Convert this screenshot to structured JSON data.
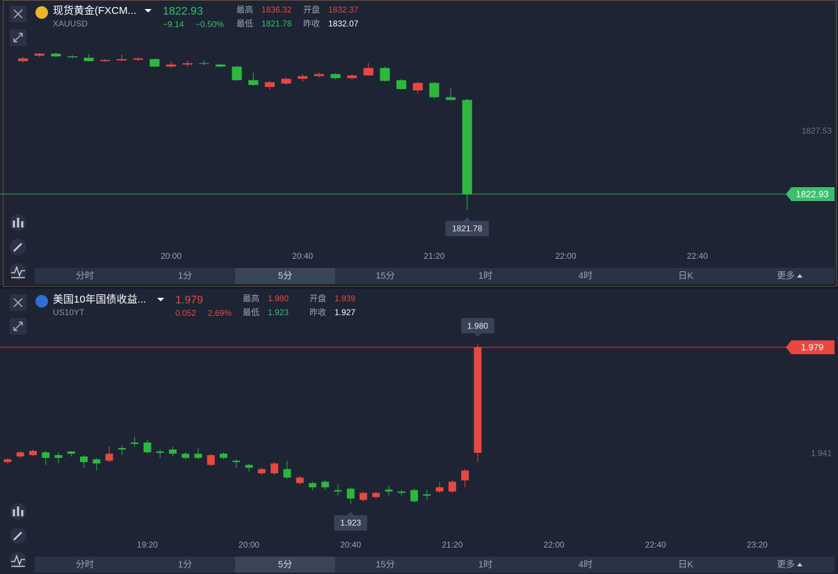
{
  "panels": [
    {
      "header": {
        "name": "现货黄金(FXCM...",
        "symbol": "XAUUSD",
        "price": "1822.93",
        "change": "−9.14",
        "change_pct": "−0.50%",
        "high_label": "最高",
        "high": "1836.32",
        "open_label": "开盘",
        "open": "1832.37",
        "low_label": "最低",
        "low": "1821.78",
        "prev_label": "昨收",
        "prev_close": "1832.07",
        "trend_color": "#3cbf6c",
        "icon_color": "#f0b429"
      }
    },
    {
      "header": {
        "name": "美国10年国债收益...",
        "symbol": "US10YT",
        "price": "1.979",
        "change": "0.052",
        "change_pct": "2.69%",
        "high_label": "最高",
        "high": "1.980",
        "open_label": "开盘",
        "open": "1.939",
        "low_label": "最低",
        "low": "1.923",
        "prev_label": "昨收",
        "prev_close": "1.927",
        "trend_color": "#e8483f",
        "icon_color": "#2f6fd6"
      }
    }
  ],
  "tabs": [
    "分时",
    "1分",
    "5分",
    "15分",
    "1时",
    "4时",
    "日K",
    "更多"
  ],
  "active_tab": 2,
  "chart_data": [
    {
      "type": "candlestick",
      "up_color": "#e8483f",
      "down_color": "#2db83d",
      "xlim": [
        "19:08",
        "23:09"
      ],
      "ylim": [
        1817.77,
        1837.19
      ],
      "yticks": [
        1827.53
      ],
      "xticks": [
        "20:00",
        "20:40",
        "21:20",
        "22:00",
        "22:40"
      ],
      "x": [
        "19:15",
        "19:20",
        "19:25",
        "19:30",
        "19:35",
        "19:40",
        "19:45",
        "19:50",
        "19:55",
        "20:00",
        "20:05",
        "20:10",
        "20:15",
        "20:20",
        "20:25",
        "20:30",
        "20:35",
        "20:40",
        "20:45",
        "20:50",
        "20:55",
        "21:00",
        "21:05",
        "21:10",
        "21:15",
        "21:20",
        "21:25",
        "21:30"
      ],
      "open": [
        1832.7,
        1833.1,
        1833.25,
        1833.05,
        1832.95,
        1832.7,
        1832.75,
        1832.8,
        1832.85,
        1832.3,
        1832.45,
        1832.55,
        1832.45,
        1832.3,
        1831.3,
        1830.8,
        1831.05,
        1831.4,
        1831.6,
        1831.75,
        1831.45,
        1831.65,
        1832.2,
        1831.3,
        1830.55,
        1831.1,
        1830.05,
        1829.85
      ],
      "high": [
        1833.0,
        1833.3,
        1833.35,
        1833.15,
        1833.2,
        1832.85,
        1833.2,
        1833.0,
        1832.9,
        1832.7,
        1832.75,
        1832.75,
        1832.5,
        1832.35,
        1831.85,
        1831.25,
        1831.5,
        1831.75,
        1831.85,
        1831.8,
        1831.75,
        1832.55,
        1832.3,
        1831.4,
        1831.2,
        1831.2,
        1830.7,
        1829.95
      ],
      "low": [
        1832.6,
        1833.0,
        1832.95,
        1832.9,
        1832.65,
        1832.62,
        1832.7,
        1832.7,
        1832.25,
        1832.2,
        1832.3,
        1832.4,
        1832.25,
        1831.25,
        1830.9,
        1830.6,
        1830.95,
        1831.2,
        1831.5,
        1831.35,
        1831.35,
        1831.6,
        1831.2,
        1830.6,
        1830.3,
        1829.95,
        1829.8,
        1821.78
      ],
      "close": [
        1832.9,
        1833.25,
        1833.05,
        1832.98,
        1832.7,
        1832.78,
        1832.85,
        1832.9,
        1832.3,
        1832.45,
        1832.55,
        1832.5,
        1832.3,
        1831.3,
        1830.95,
        1831.15,
        1831.4,
        1831.6,
        1831.75,
        1831.45,
        1831.65,
        1832.2,
        1831.25,
        1830.65,
        1831.1,
        1830.05,
        1829.85,
        1822.93
      ],
      "annotations": [
        {
          "x": "21:30",
          "value": 1821.78,
          "label": "1821.78",
          "side": "below"
        }
      ]
    },
    {
      "type": "candlestick",
      "up_color": "#e8483f",
      "down_color": "#2db83d",
      "xlim": [
        "18:22",
        "23:34"
      ],
      "ylim": [
        1.9055,
        1.9999
      ],
      "yticks": [
        1.941
      ],
      "xticks": [
        "19:20",
        "20:00",
        "20:40",
        "21:20",
        "22:00",
        "22:40",
        "23:20"
      ],
      "x": [
        "18:25",
        "18:30",
        "18:35",
        "18:40",
        "18:45",
        "18:50",
        "18:55",
        "19:00",
        "19:05",
        "19:10",
        "19:15",
        "19:20",
        "19:25",
        "19:30",
        "19:35",
        "19:40",
        "19:45",
        "19:50",
        "19:55",
        "20:00",
        "20:05",
        "20:10",
        "20:15",
        "20:20",
        "20:25",
        "20:30",
        "20:35",
        "20:40",
        "20:45",
        "20:50",
        "20:55",
        "21:00",
        "21:05",
        "21:10",
        "21:15",
        "21:20",
        "21:25",
        "21:30"
      ],
      "open": [
        1.938,
        1.94,
        1.9405,
        1.9415,
        1.9405,
        1.9418,
        1.94,
        1.939,
        1.9385,
        1.943,
        1.945,
        1.945,
        1.9418,
        1.9425,
        1.941,
        1.941,
        1.937,
        1.941,
        1.9385,
        1.937,
        1.934,
        1.934,
        1.9355,
        1.9305,
        1.9305,
        1.931,
        1.928,
        1.9285,
        1.9245,
        1.9255,
        1.9282,
        1.9275,
        1.928,
        1.9265,
        1.9275,
        1.9275,
        1.9315,
        1.9413
      ],
      "high": [
        1.9395,
        1.942,
        1.9425,
        1.942,
        1.9415,
        1.942,
        1.9405,
        1.9395,
        1.9435,
        1.944,
        1.947,
        1.946,
        1.9425,
        1.9435,
        1.9415,
        1.943,
        1.941,
        1.9415,
        1.939,
        1.9375,
        1.936,
        1.938,
        1.9385,
        1.933,
        1.931,
        1.9315,
        1.93,
        1.929,
        1.9275,
        1.9275,
        1.9295,
        1.928,
        1.9285,
        1.928,
        1.931,
        1.9315,
        1.9355,
        1.98
      ],
      "low": [
        1.9375,
        1.9395,
        1.94,
        1.937,
        1.9375,
        1.94,
        1.936,
        1.935,
        1.938,
        1.9405,
        1.9435,
        1.941,
        1.9395,
        1.94,
        1.939,
        1.939,
        1.9365,
        1.939,
        1.936,
        1.9345,
        1.9335,
        1.9335,
        1.932,
        1.93,
        1.928,
        1.928,
        1.926,
        1.923,
        1.924,
        1.925,
        1.926,
        1.926,
        1.9235,
        1.9245,
        1.927,
        1.927,
        1.929,
        1.938
      ],
      "close": [
        1.939,
        1.9415,
        1.942,
        1.9395,
        1.9395,
        1.941,
        1.938,
        1.9375,
        1.941,
        1.9425,
        1.9445,
        1.9415,
        1.9413,
        1.941,
        1.9395,
        1.9395,
        1.9405,
        1.9395,
        1.938,
        1.936,
        1.9355,
        1.9375,
        1.9325,
        1.9325,
        1.929,
        1.929,
        1.9275,
        1.925,
        1.927,
        1.927,
        1.9275,
        1.927,
        1.924,
        1.926,
        1.929,
        1.931,
        1.935,
        1.979
      ],
      "annotations": [
        {
          "x": "21:30",
          "value": 1.98,
          "label": "1.980",
          "side": "above"
        },
        {
          "x": "20:40",
          "value": 1.923,
          "label": "1.923",
          "side": "below"
        }
      ]
    }
  ]
}
